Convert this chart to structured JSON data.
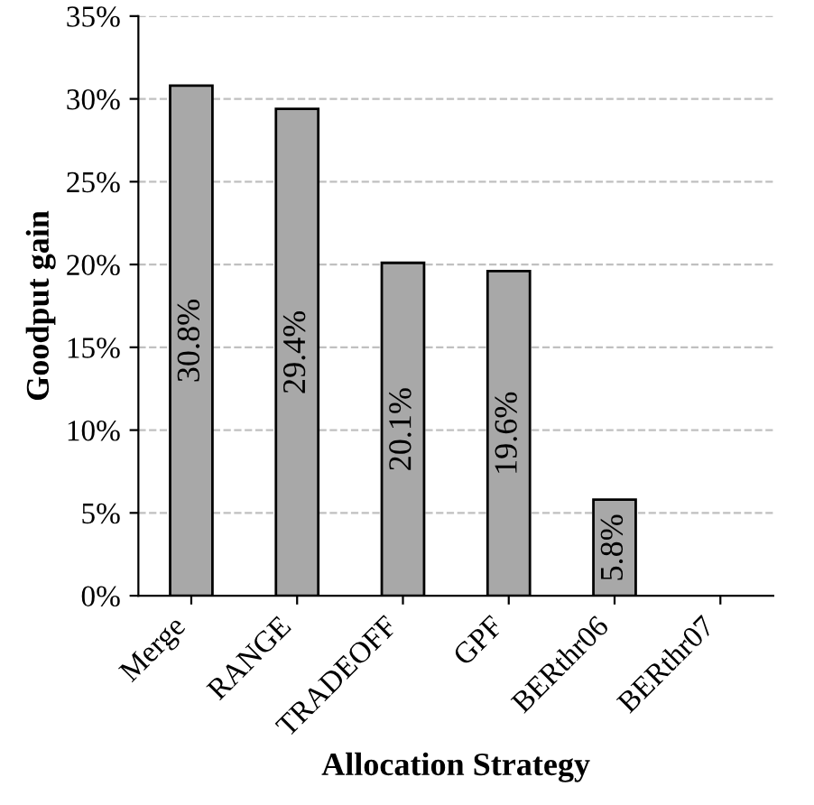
{
  "chart_data": {
    "type": "bar",
    "xlabel": "Allocation Strategy",
    "ylabel": "Goodput gain",
    "categories": [
      "Merge",
      "RANGE",
      "TRADEOFF",
      "GPF",
      "BERthr06",
      "BERthr07"
    ],
    "values": [
      30.8,
      29.4,
      20.1,
      19.6,
      5.8,
      null
    ],
    "value_labels": [
      "30.8%",
      "29.4%",
      "20.1%",
      "19.6%",
      "5.8%",
      null
    ],
    "color": "#a8a8a8",
    "ylim": [
      0,
      35
    ],
    "yticks": [
      {
        "value": 0,
        "label": "0%"
      },
      {
        "value": 5,
        "label": "5%"
      },
      {
        "value": 10,
        "label": "10%"
      },
      {
        "value": 15,
        "label": "15%"
      },
      {
        "value": 20,
        "label": "20%"
      },
      {
        "value": 25,
        "label": "25%"
      },
      {
        "value": 30,
        "label": "30%"
      },
      {
        "value": 35,
        "label": "35%"
      }
    ],
    "grid": "y",
    "line_style": "dashed"
  }
}
